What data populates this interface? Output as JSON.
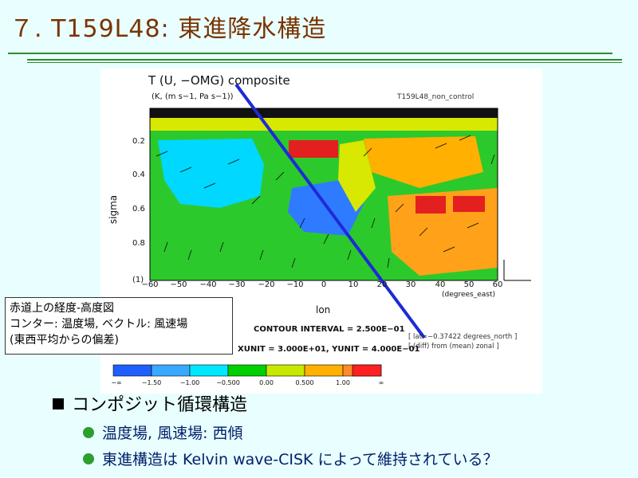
{
  "slide": {
    "title": "７. T159L48: 東進降水構造"
  },
  "figure": {
    "title": "T (U, −OMG) composite",
    "subtitle": "(K, (m s−1, Pa s−1))",
    "run_label": "T159L48_non_control",
    "ylabel": "sigma",
    "xlabel": "lon",
    "x_unit": "(degrees_east)",
    "y_ticks": [
      "0.2",
      "0.4",
      "0.6",
      "0.8",
      "(1)"
    ],
    "x_ticks": [
      "−60",
      "−50",
      "−40",
      "−30",
      "−20",
      "−10",
      "0",
      "10",
      "20",
      "30",
      "40",
      "50",
      "60"
    ],
    "contour_interval": "CONTOUR INTERVAL = 2.500E−01",
    "scale_info": "XUNIT = 3.000E+01, YUNIT = 4.000E−01",
    "note_line1": "[ lat=−0.37422 degrees_north ]",
    "note_line2": "[ (diff) from (mean) zonal ]",
    "colorbar_labels": [
      "−∞",
      "−1.50",
      "−1.00",
      "−0.500",
      "0.00",
      "0.500",
      "1.00",
      "∞"
    ],
    "colorbar_colors": [
      "#1f5fff",
      "#39a8ff",
      "#00e8ff",
      "#00d000",
      "#c8e800",
      "#ffb000",
      "#ff8a2a",
      "#ff2020"
    ]
  },
  "callout": {
    "line1": "赤道上の経度-高度図",
    "line2": "コンター: 温度場, ベクトル: 風速場",
    "line3": "(東西平均からの偏差)"
  },
  "bullets": {
    "main": "コンポジット循環構造",
    "sub1": "温度場, 風速場: 西傾",
    "sub2": "東進構造は Kelvin wave-CISK によって維持されている？"
  }
}
